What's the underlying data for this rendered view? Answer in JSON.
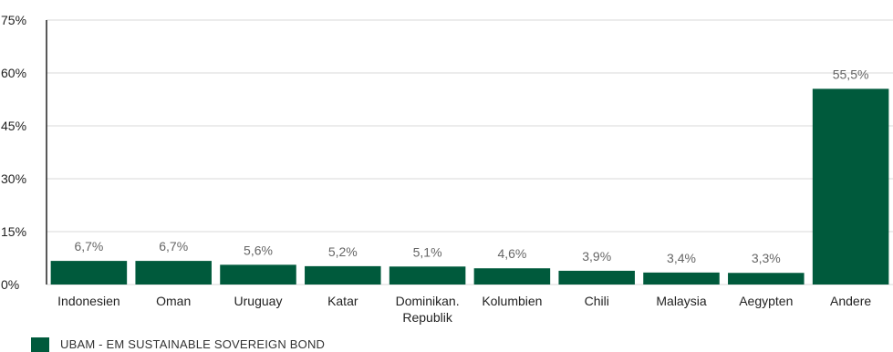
{
  "chart_data": {
    "type": "bar",
    "categories": [
      "Indonesien",
      "Oman",
      "Uruguay",
      "Katar",
      "Dominikan. Republik",
      "Kolumbien",
      "Chili",
      "Malaysia",
      "Aegypten",
      "Andere"
    ],
    "category_lines": [
      [
        "Indonesien"
      ],
      [
        "Oman"
      ],
      [
        "Uruguay"
      ],
      [
        "Katar"
      ],
      [
        "Dominikan.",
        "Republik"
      ],
      [
        "Kolumbien"
      ],
      [
        "Chili"
      ],
      [
        "Malaysia"
      ],
      [
        "Aegypten"
      ],
      [
        "Andere"
      ]
    ],
    "values": [
      6.7,
      6.7,
      5.6,
      5.2,
      5.1,
      4.6,
      3.9,
      3.4,
      3.3,
      55.5
    ],
    "data_labels": [
      "6,7%",
      "6,7%",
      "5,6%",
      "5,2%",
      "5,1%",
      "4,6%",
      "3,9%",
      "3,4%",
      "3,3%",
      "55,5%"
    ],
    "ylim": [
      0,
      75
    ],
    "yticks": [
      0,
      15,
      30,
      45,
      60,
      75
    ],
    "ytick_labels": [
      "0%",
      "15%",
      "30%",
      "45%",
      "60%",
      "75%"
    ],
    "grid": true,
    "legend_position": "bottom-left",
    "series": [
      {
        "name": "UBAM - EM SUSTAINABLE SOVEREIGN BOND",
        "values": [
          6.7,
          6.7,
          5.6,
          5.2,
          5.1,
          4.6,
          3.9,
          3.4,
          3.3,
          55.5
        ]
      }
    ],
    "colors": {
      "bar": "#005a3c",
      "grid": "#d9d9d9",
      "axis": "#222222"
    }
  }
}
